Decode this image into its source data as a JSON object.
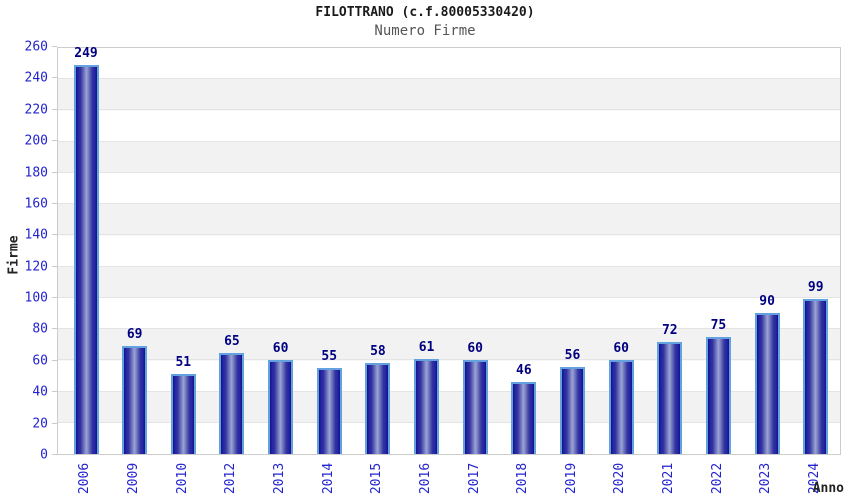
{
  "header": {
    "title": "FILOTTRANO (c.f.80005330420)",
    "subtitle": "Numero Firme"
  },
  "chart_data": {
    "type": "bar",
    "title": "FILOTTRANO (c.f.80005330420)",
    "subtitle": "Numero Firme",
    "categories": [
      "2006",
      "2009",
      "2010",
      "2012",
      "2013",
      "2014",
      "2015",
      "2016",
      "2017",
      "2018",
      "2019",
      "2020",
      "2021",
      "2022",
      "2023",
      "2024"
    ],
    "values": [
      249,
      69,
      51,
      65,
      60,
      55,
      58,
      61,
      60,
      46,
      56,
      60,
      72,
      75,
      90,
      99
    ],
    "xlabel": "Anno",
    "ylabel": "Firme",
    "ylim": [
      0,
      260
    ],
    "ytick_step": 20,
    "grid": true,
    "legend_position": "none",
    "band_shading": "alternating horizontal bands every 20 units"
  },
  "colors": {
    "tick_label": "#2323cf",
    "value_label": "#000080",
    "bar_edge": "#63a2de",
    "bar_dark": "#13137a",
    "bar_mid": "#33339e",
    "bar_light": "#9ba4d5",
    "band_gray": "#f2f2f2",
    "band_white": "#ffffff",
    "grid_line": "#e4e4e4",
    "plot_border": "#cccccc",
    "title_color": "#1a1a1a",
    "subtitle_color": "#555555",
    "axis_title_color": "#222222"
  }
}
